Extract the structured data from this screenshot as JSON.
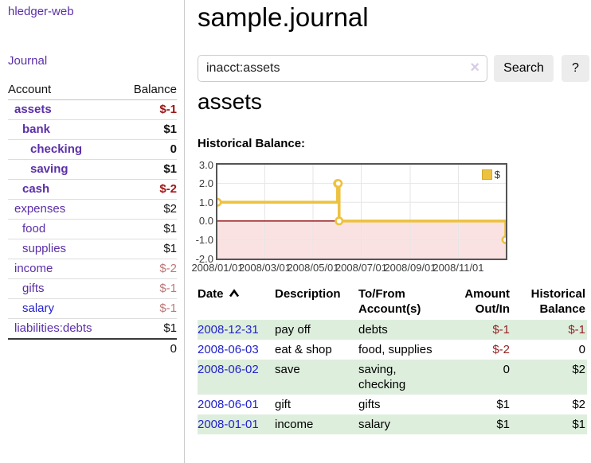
{
  "brand": "hledger-web",
  "sidebar": {
    "journal_link": "Journal",
    "accounts": {
      "header_account": "Account",
      "header_balance": "Balance",
      "rows": [
        {
          "name": "assets",
          "balance": "$-1"
        },
        {
          "name": "bank",
          "balance": "$1"
        },
        {
          "name": "checking",
          "balance": "0"
        },
        {
          "name": "saving",
          "balance": "$1"
        },
        {
          "name": "cash",
          "balance": "$-2"
        },
        {
          "name": "expenses",
          "balance": "$2"
        },
        {
          "name": "food",
          "balance": "$1"
        },
        {
          "name": "supplies",
          "balance": "$1"
        },
        {
          "name": "income",
          "balance": "$-2"
        },
        {
          "name": "gifts",
          "balance": "$-1"
        },
        {
          "name": "salary",
          "balance": "$-1"
        },
        {
          "name": "liabilities:debts",
          "balance": "$1"
        }
      ],
      "total": "0"
    }
  },
  "main": {
    "title": "sample.journal",
    "search": {
      "value": "inacct:assets",
      "clear_icon": "×",
      "search_button": "Search",
      "help_button": "?"
    },
    "heading": "assets",
    "chart_title": "Historical Balance:"
  },
  "chart_data": {
    "type": "line",
    "mode": "steps",
    "title": "Historical Balance:",
    "series": [
      {
        "name": "$",
        "color": "#EDC240",
        "points": [
          [
            "2008-01-01",
            1
          ],
          [
            "2008-06-01",
            2
          ],
          [
            "2008-06-02",
            2
          ],
          [
            "2008-06-03",
            0
          ],
          [
            "2008-12-31",
            -1
          ]
        ]
      }
    ],
    "ylim": [
      -2,
      3
    ],
    "yticks": [
      "3.0",
      "2.0",
      "1.0",
      "0.0",
      "-1.0",
      "-2.0"
    ],
    "xticks": [
      "2008/01/01",
      "2008/03/01",
      "2008/05/01",
      "2008/07/01",
      "2008/09/01",
      "2008/11/01"
    ],
    "xrange": [
      "2008-01-01",
      "2008-12-31"
    ],
    "grid": true,
    "legend_position": "top-right",
    "zero_line_color": "#8b0000",
    "negative_region_color": "#fbe2e2",
    "grid_color": "#e6e6e6"
  },
  "register": {
    "headers": {
      "date": "Date",
      "description": "Description",
      "accounts": "To/From\nAccount(s)",
      "amount": "Amount\nOut/In",
      "balance": "Historical\nBalance"
    },
    "rows": [
      {
        "date": "2008-12-31",
        "description": "pay off",
        "accounts": "debts",
        "amount": "$-1",
        "balance": "$-1"
      },
      {
        "date": "2008-06-03",
        "description": "eat & shop",
        "accounts": "food, supplies",
        "amount": "$-2",
        "balance": "0"
      },
      {
        "date": "2008-06-02",
        "description": "save",
        "accounts": "saving,\nchecking",
        "amount": "0",
        "balance": "$2"
      },
      {
        "date": "2008-06-01",
        "description": "gift",
        "accounts": "gifts",
        "amount": "$1",
        "balance": "$2"
      },
      {
        "date": "2008-01-01",
        "description": "income",
        "accounts": "salary",
        "amount": "$1",
        "balance": "$1"
      }
    ]
  }
}
